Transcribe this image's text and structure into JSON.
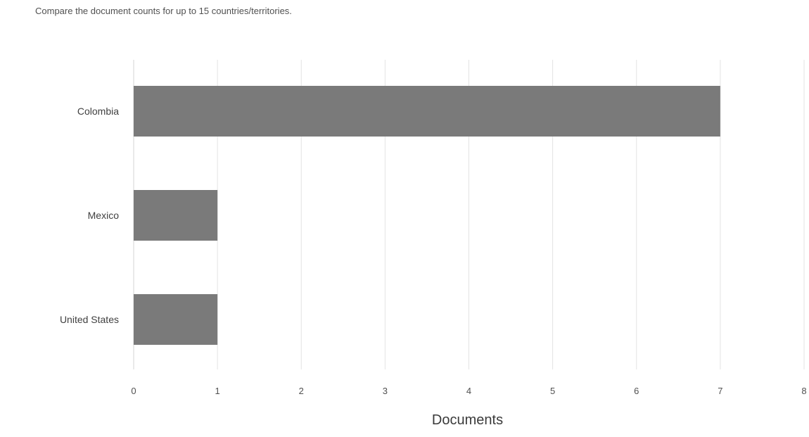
{
  "subtitle": "Compare the document counts for up to 15 countries/territories.",
  "chart_data": {
    "type": "bar",
    "orientation": "horizontal",
    "categories": [
      "Colombia",
      "Mexico",
      "United States"
    ],
    "values": [
      7,
      1,
      1
    ],
    "xlabel": "Documents",
    "ylabel": "",
    "xlim": [
      0,
      8
    ],
    "x_ticks": [
      0,
      1,
      2,
      3,
      4,
      5,
      6,
      7,
      8
    ],
    "grid": "vertical",
    "bar_color": "#7a7a7a"
  }
}
